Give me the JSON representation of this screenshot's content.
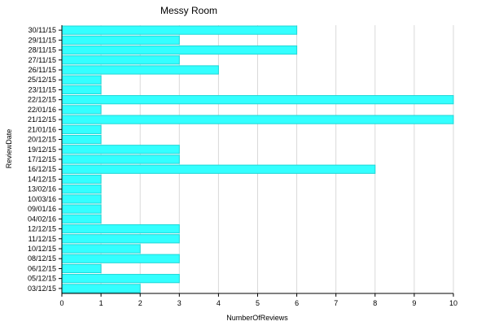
{
  "chart_data": {
    "type": "bar",
    "orientation": "horizontal",
    "title": "Messy Room",
    "xlabel": "NumberOfReviews",
    "ylabel": "ReviewDate",
    "xlim": [
      0,
      10
    ],
    "xticks": [
      0,
      1,
      2,
      3,
      4,
      5,
      6,
      7,
      8,
      9,
      10
    ],
    "grid": true,
    "bar_color": "#33ffff",
    "categories": [
      "30/11/15",
      "29/11/15",
      "28/11/15",
      "27/11/15",
      "26/11/15",
      "25/12/15",
      "23/11/15",
      "22/12/15",
      "22/01/16",
      "21/12/15",
      "21/01/16",
      "20/12/15",
      "19/12/15",
      "17/12/15",
      "16/12/15",
      "14/12/15",
      "13/02/16",
      "10/03/16",
      "09/01/16",
      "04/02/16",
      "12/12/15",
      "11/12/15",
      "10/12/15",
      "08/12/15",
      "06/12/15",
      "05/12/15",
      "03/12/15"
    ],
    "values": [
      6,
      3,
      6,
      3,
      4,
      1,
      1,
      10,
      1,
      10,
      1,
      1,
      3,
      3,
      8,
      1,
      1,
      1,
      1,
      1,
      3,
      3,
      2,
      3,
      1,
      3,
      2
    ]
  }
}
